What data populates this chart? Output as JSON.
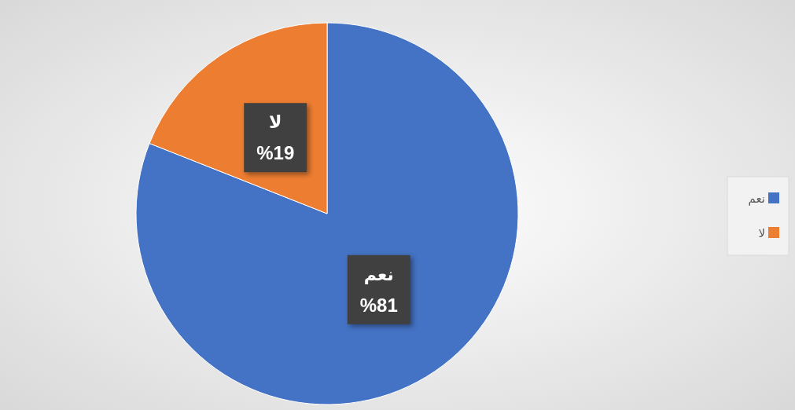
{
  "chart_data": {
    "type": "pie",
    "categories": [
      "نعم",
      "لا"
    ],
    "values": [
      81,
      19
    ],
    "colors": [
      "#4472c4",
      "#ed7d31"
    ],
    "value_labels": [
      "%81",
      "%19"
    ],
    "legend": "right"
  }
}
